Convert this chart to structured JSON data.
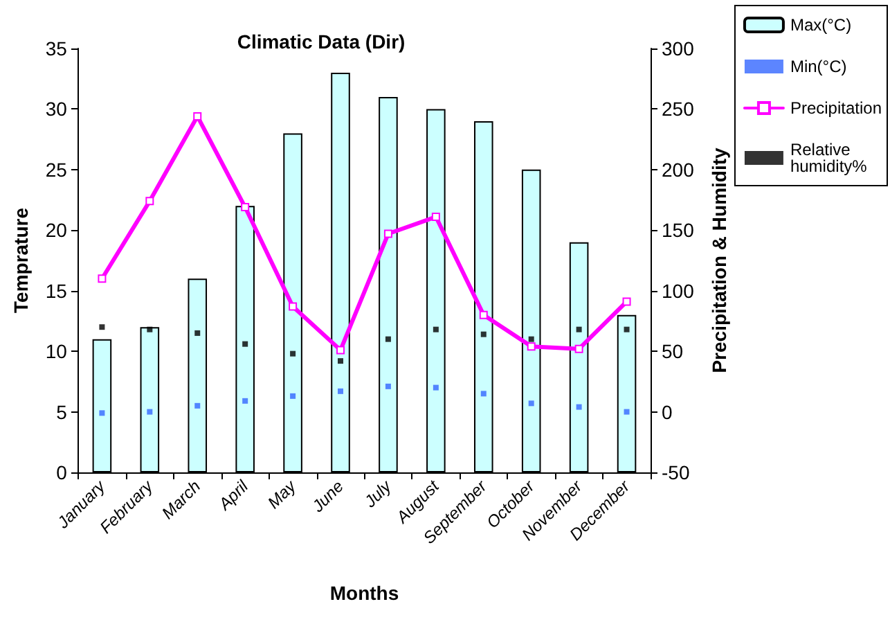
{
  "chart_data": {
    "type": "bar",
    "title": "Climatic Data (Dir)",
    "xlabel": "Months",
    "ylabel": "Temprature",
    "y2label": "Precipitation & Humidity",
    "categories": [
      "January",
      "February",
      "March",
      "April",
      "May",
      "June",
      "July",
      "August",
      "September",
      "October",
      "November",
      "December"
    ],
    "series": [
      {
        "name": "Max(°C)",
        "color": "#ccffff",
        "values": [
          11,
          12,
          16,
          22,
          28,
          33,
          31,
          30,
          29,
          25,
          19,
          13
        ]
      },
      {
        "name": "Min(°C)",
        "type": "scatter",
        "marker": "square",
        "color": "#3366ff",
        "values": [
          4.9,
          5.0,
          5.5,
          5.9,
          6.3,
          6.7,
          7.1,
          7.0,
          6.5,
          5.7,
          5.4,
          5.0
        ]
      },
      {
        "name": "Precipitation",
        "type": "line",
        "axis": "y2",
        "marker": "square",
        "color": "#ff00ff",
        "values": [
          110,
          174,
          244,
          169,
          87,
          51,
          147,
          161,
          80,
          54,
          52,
          91
        ]
      },
      {
        "name": "Relative humidity%",
        "type": "scatter",
        "axis": "y2",
        "marker": "square",
        "color": "#000000",
        "values": [
          70,
          68,
          65,
          56,
          48,
          42,
          60,
          68,
          64,
          60,
          68,
          68
        ]
      }
    ],
    "ylim": [
      0,
      35
    ],
    "yticks": [
      0,
      5,
      10,
      15,
      20,
      25,
      30,
      35
    ],
    "y2lim": [
      -50,
      300
    ],
    "y2ticks": [
      -50,
      0,
      50,
      100,
      150,
      200,
      250,
      300
    ],
    "grid": false,
    "legend": "top right"
  }
}
